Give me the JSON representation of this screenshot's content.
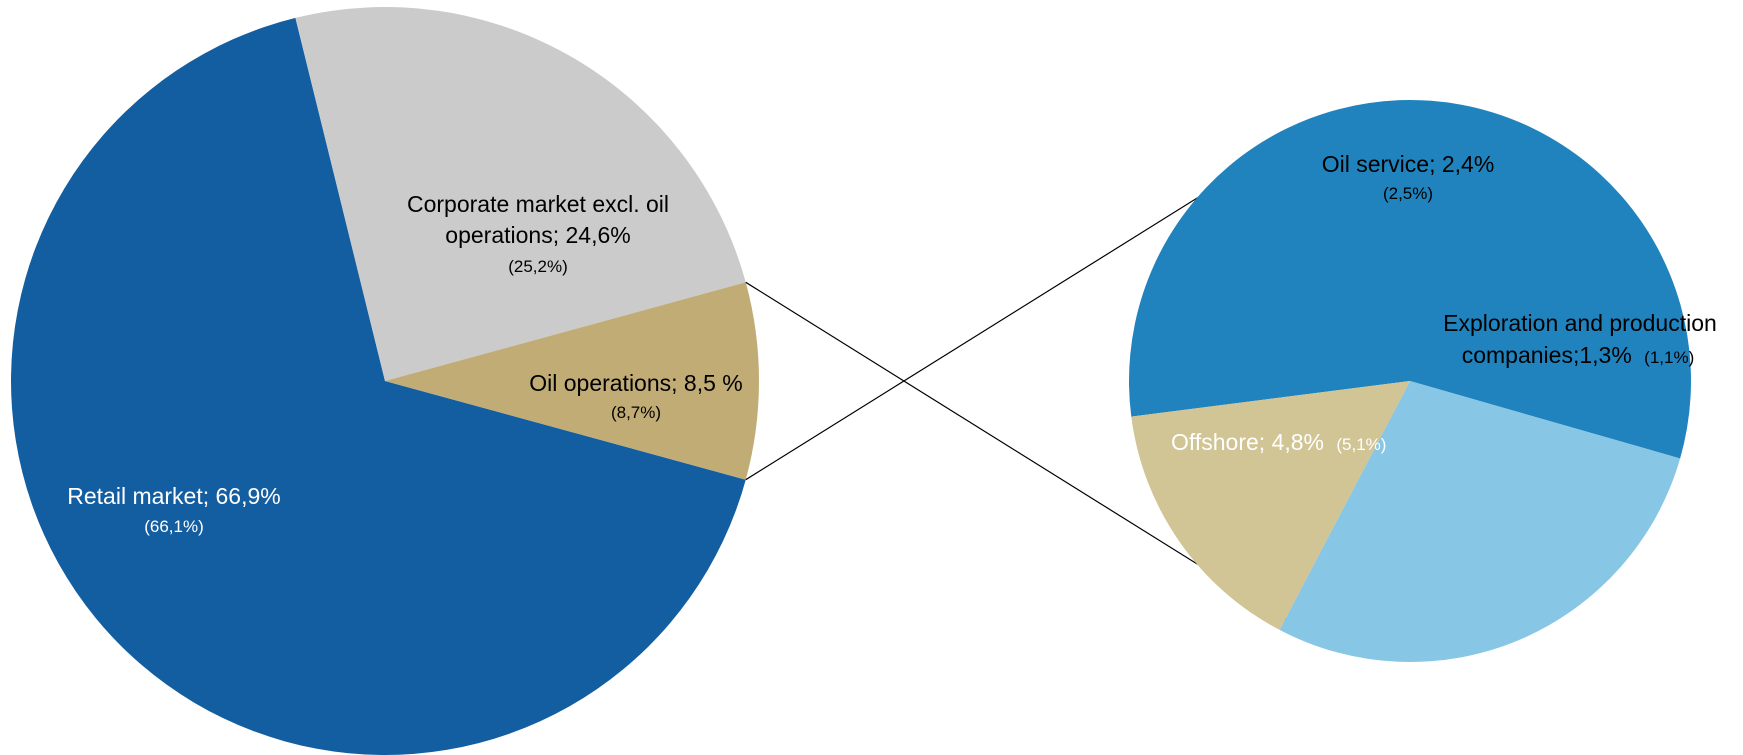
{
  "chart_data": [
    {
      "type": "pie",
      "title": "",
      "slices": [
        {
          "label": "Retail market; 66,9%",
          "sublabel": "(66,1%)",
          "value": 66.9,
          "previous": 66.1,
          "color": "#135ea0",
          "text_color": "#ffffff"
        },
        {
          "label": "Corporate market excl. oil operations; 24,6%",
          "label_line1": "Corporate market excl. oil",
          "label_line2": "operations; 24,6%",
          "sublabel": "(25,2%)",
          "value": 24.6,
          "previous": 25.2,
          "color": "#cbcbcb",
          "text_color": "#000000"
        },
        {
          "label": "Oil operations; 8,5 %",
          "sublabel": "(8,7%)",
          "value": 8.5,
          "previous": 8.7,
          "color": "#c0ac74",
          "text_color": "#000000"
        }
      ]
    },
    {
      "type": "pie",
      "title": "",
      "detail_of": "Oil operations; 8,5 %",
      "slices": [
        {
          "label": "Offshore; 4,8%",
          "sublabel": "(5,1%)",
          "value": 4.8,
          "previous": 5.1,
          "color": "#2083bd",
          "text_color": "#ffffff"
        },
        {
          "label": "Oil service; 2,4%",
          "sublabel": "(2,5%)",
          "value": 2.4,
          "previous": 2.5,
          "color": "#87c6e5",
          "text_color": "#000000"
        },
        {
          "label": "Exploration and production companies;1,3%",
          "label_line1": "Exploration and production",
          "label_line2": "companies;1,3%",
          "sublabel": "(1,1%)",
          "value": 1.3,
          "previous": 1.1,
          "color": "#d1c495",
          "text_color": "#000000"
        }
      ]
    }
  ]
}
